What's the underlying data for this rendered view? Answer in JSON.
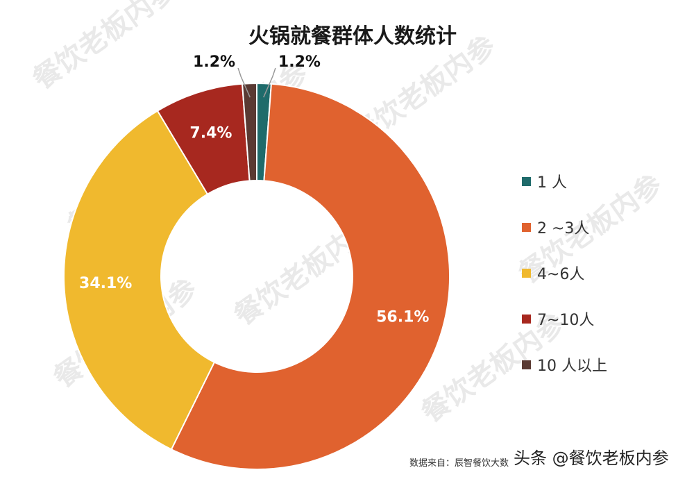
{
  "chart_data": {
    "type": "pie",
    "variant": "donut",
    "title": "火锅就餐群体人数统计",
    "slices": [
      {
        "name": "1 人",
        "value": 1.2,
        "label": "1.2%",
        "color": "#1f6b6b"
      },
      {
        "name": "2 ~3人",
        "value": 56.1,
        "label": "56.1%",
        "color": "#e0622f"
      },
      {
        "name": "4~6人",
        "value": 34.1,
        "label": "34.1%",
        "color": "#f0b92e"
      },
      {
        "name": "7~10人",
        "value": 7.4,
        "label": "7.4%",
        "color": "#a7281f"
      },
      {
        "name": "10 人以上",
        "value": 1.2,
        "label": "1.2%",
        "color": "#5a3a33"
      }
    ],
    "legend_position": "right"
  },
  "watermark_text": "餐饮老板内参",
  "footer": {
    "source": "数据来自：辰智餐饮大数",
    "credit": "头条 @餐饮老板内参"
  }
}
